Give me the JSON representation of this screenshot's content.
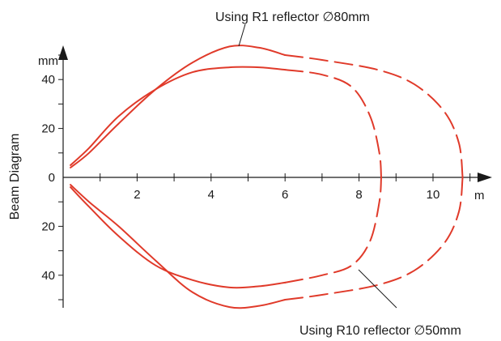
{
  "title_annotation_top": "Using R1 reflector ∅80mm",
  "title_annotation_bottom": "Using R10 reflector ∅50mm",
  "y_axis_title": "Beam Diagram",
  "y_unit": "mm",
  "x_unit": "m",
  "colors": {
    "beam": "#e03a2a",
    "axis": "#1a1a1a"
  },
  "chart_data": {
    "type": "line",
    "xlabel": "m",
    "ylabel": "Beam Diagram",
    "x_ticks": [
      "2",
      "4",
      "6",
      "8",
      "10"
    ],
    "y_ticks_upper": [
      "40",
      "20",
      "0"
    ],
    "y_ticks_lower": [
      "20",
      "40"
    ],
    "xlim": [
      0,
      11
    ],
    "ylim": [
      -55,
      55
    ],
    "series": [
      {
        "name": "Using R1 reflector ∅80mm",
        "solid_to_x": 6,
        "upper": [
          [
            0.2,
            4
          ],
          [
            0.7,
            10
          ],
          [
            1.5,
            22
          ],
          [
            2.5,
            36
          ],
          [
            3.5,
            47
          ],
          [
            4.5,
            53.5
          ],
          [
            5.3,
            53
          ],
          [
            6.0,
            50
          ],
          [
            7.0,
            48
          ],
          [
            8.5,
            44
          ],
          [
            9.5,
            38
          ],
          [
            10.3,
            27
          ],
          [
            10.7,
            14
          ],
          [
            10.8,
            0
          ]
        ],
        "lower": [
          [
            0.2,
            -3
          ],
          [
            0.7,
            -10
          ],
          [
            1.5,
            -20
          ],
          [
            2.5,
            -34
          ],
          [
            3.5,
            -47
          ],
          [
            4.5,
            -53
          ],
          [
            5.3,
            -52.5
          ],
          [
            6.0,
            -50
          ],
          [
            7.0,
            -48
          ],
          [
            8.5,
            -44
          ],
          [
            9.5,
            -38
          ],
          [
            10.3,
            -27
          ],
          [
            10.7,
            -14
          ],
          [
            10.8,
            0
          ]
        ]
      },
      {
        "name": "Using R10 reflector ∅50mm",
        "solid_to_x": 6,
        "upper": [
          [
            0.2,
            5
          ],
          [
            0.7,
            12
          ],
          [
            1.5,
            25
          ],
          [
            2.5,
            36
          ],
          [
            3.5,
            43
          ],
          [
            4.5,
            45
          ],
          [
            5.3,
            45
          ],
          [
            6.0,
            44
          ],
          [
            7.0,
            42
          ],
          [
            7.8,
            37
          ],
          [
            8.3,
            25
          ],
          [
            8.55,
            10
          ],
          [
            8.6,
            0
          ]
        ],
        "lower": [
          [
            0.2,
            -4
          ],
          [
            0.7,
            -12
          ],
          [
            1.5,
            -24
          ],
          [
            2.5,
            -36
          ],
          [
            3.5,
            -42
          ],
          [
            4.5,
            -45
          ],
          [
            5.3,
            -44.5
          ],
          [
            6.0,
            -43
          ],
          [
            7.0,
            -40
          ],
          [
            7.8,
            -36
          ],
          [
            8.3,
            -26
          ],
          [
            8.55,
            -10
          ],
          [
            8.6,
            0
          ]
        ]
      }
    ]
  }
}
